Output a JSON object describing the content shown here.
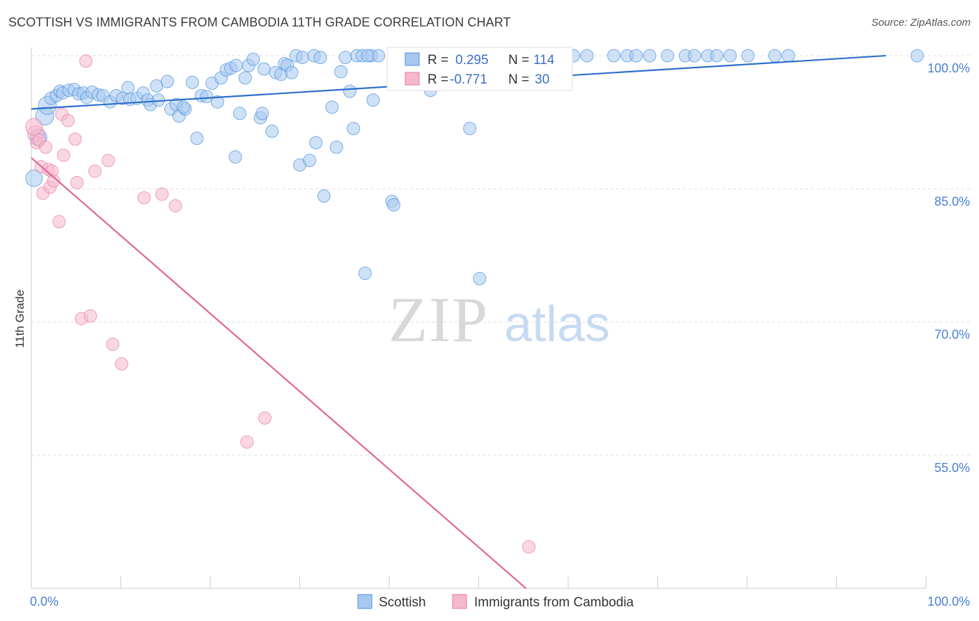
{
  "title": "SCOTTISH VS IMMIGRANTS FROM CAMBODIA 11TH GRADE CORRELATION CHART",
  "source": "Source: ZipAtlas.com",
  "watermark": {
    "zip": "ZIP",
    "atlas": "atlas"
  },
  "colors": {
    "blue": "#4a90d9",
    "blue_fill": "#a8c8f0",
    "pink": "#e87aa0",
    "pink_fill": "#f5b8cc",
    "blue_line": "#2d6fcc",
    "pink_line": "#e0659a",
    "grid": "#dddddd",
    "axis_label": "#4a7fd0"
  },
  "chart_data": {
    "type": "scatter",
    "ylabel": "11th Grade",
    "xlim": [
      0,
      100
    ],
    "ylim": [
      40,
      102
    ],
    "x_tick_labels": [
      {
        "value": 0,
        "label": "0.0%"
      },
      {
        "value": 100,
        "label": "100.0%"
      }
    ],
    "y_ticks": [
      {
        "value": 100,
        "label": "100.0%"
      },
      {
        "value": 85,
        "label": "85.0%"
      },
      {
        "value": 70,
        "label": "70.0%"
      },
      {
        "value": 55,
        "label": "55.0%"
      }
    ],
    "legend": [
      {
        "series": "Scottish",
        "r_label": "R =",
        "r_value": "0.295",
        "n_label": "N =",
        "n_value": "114"
      },
      {
        "series": "Immigrants from Cambodia",
        "r_label": "R =",
        "r_value": "-0.771",
        "n_label": "N =",
        "n_value": "30"
      }
    ],
    "series": [
      {
        "name": "Scottish",
        "trend": {
          "x0": 0,
          "y0": 94.0,
          "x1": 95.5,
          "y1": 100.0
        },
        "points": [
          [
            0.3,
            86.2
          ],
          [
            0.8,
            90.8
          ],
          [
            1.5,
            93.2
          ],
          [
            1.8,
            94.4
          ],
          [
            2.2,
            95.2
          ],
          [
            2.8,
            95.5
          ],
          [
            3.2,
            96.0
          ],
          [
            3.5,
            95.8
          ],
          [
            4.2,
            96.1
          ],
          [
            4.8,
            96.2
          ],
          [
            5.3,
            95.7
          ],
          [
            5.8,
            95.8
          ],
          [
            6.2,
            95.3
          ],
          [
            6.8,
            95.9
          ],
          [
            7.5,
            95.6
          ],
          [
            8.0,
            95.5
          ],
          [
            8.8,
            94.8
          ],
          [
            9.5,
            95.5
          ],
          [
            10.2,
            95.2
          ],
          [
            11.0,
            95.1
          ],
          [
            10.8,
            96.4
          ],
          [
            11.8,
            95.2
          ],
          [
            12.5,
            95.8
          ],
          [
            13.0,
            95.0
          ],
          [
            13.3,
            94.5
          ],
          [
            14.2,
            95.0
          ],
          [
            14.0,
            96.6
          ],
          [
            15.2,
            97.1
          ],
          [
            15.6,
            94.0
          ],
          [
            16.2,
            94.5
          ],
          [
            16.5,
            93.2
          ],
          [
            17.2,
            94.0
          ],
          [
            17.0,
            94.2
          ],
          [
            18.0,
            97.0
          ],
          [
            18.5,
            90.7
          ],
          [
            19.0,
            95.5
          ],
          [
            19.6,
            95.4
          ],
          [
            20.2,
            96.9
          ],
          [
            20.8,
            94.8
          ],
          [
            21.2,
            97.5
          ],
          [
            21.8,
            98.4
          ],
          [
            22.3,
            98.6
          ],
          [
            22.9,
            98.9
          ],
          [
            22.8,
            88.6
          ],
          [
            23.3,
            93.5
          ],
          [
            23.9,
            97.5
          ],
          [
            24.3,
            98.9
          ],
          [
            24.8,
            99.6
          ],
          [
            25.6,
            93.0
          ],
          [
            25.8,
            93.5
          ],
          [
            26.0,
            98.5
          ],
          [
            26.9,
            91.5
          ],
          [
            27.3,
            98.1
          ],
          [
            27.9,
            97.9
          ],
          [
            28.3,
            99.1
          ],
          [
            28.6,
            98.9
          ],
          [
            29.1,
            98.1
          ],
          [
            29.6,
            100.0
          ],
          [
            30.0,
            87.7
          ],
          [
            30.3,
            99.8
          ],
          [
            31.1,
            88.2
          ],
          [
            31.6,
            100.0
          ],
          [
            31.8,
            90.2
          ],
          [
            32.3,
            99.8
          ],
          [
            32.7,
            84.2
          ],
          [
            33.6,
            94.2
          ],
          [
            34.1,
            89.7
          ],
          [
            34.6,
            98.2
          ],
          [
            35.1,
            99.8
          ],
          [
            35.6,
            96.0
          ],
          [
            36.0,
            91.8
          ],
          [
            36.4,
            100.0
          ],
          [
            37.0,
            100.0
          ],
          [
            37.3,
            75.5
          ],
          [
            38.0,
            100.0
          ],
          [
            38.2,
            95.0
          ],
          [
            38.8,
            100.0
          ],
          [
            40.3,
            83.6
          ],
          [
            40.5,
            83.2
          ],
          [
            40.9,
            100.0
          ],
          [
            41.7,
            100.0
          ],
          [
            43.1,
            100.0
          ],
          [
            44.6,
            96.1
          ],
          [
            45.9,
            100.0
          ],
          [
            47.1,
            100.0
          ],
          [
            48.1,
            100.0
          ],
          [
            49.0,
            91.8
          ],
          [
            49.4,
            100.0
          ],
          [
            50.1,
            74.9
          ],
          [
            51.0,
            100.0
          ],
          [
            52.2,
            100.0
          ],
          [
            53.1,
            100.0
          ],
          [
            54.6,
            100.0
          ],
          [
            56.1,
            100.0
          ],
          [
            57.6,
            100.0
          ],
          [
            58.6,
            100.0
          ],
          [
            59.6,
            100.0
          ],
          [
            60.6,
            100.0
          ],
          [
            62.1,
            100.0
          ],
          [
            65.1,
            100.0
          ],
          [
            66.6,
            100.0
          ],
          [
            67.6,
            100.0
          ],
          [
            69.1,
            100.0
          ],
          [
            71.1,
            100.0
          ],
          [
            73.1,
            100.0
          ],
          [
            74.1,
            100.0
          ],
          [
            75.6,
            100.0
          ],
          [
            76.6,
            100.0
          ],
          [
            78.1,
            100.0
          ],
          [
            80.1,
            100.0
          ],
          [
            83.1,
            100.0
          ],
          [
            84.6,
            100.0
          ],
          [
            99.0,
            100.0
          ],
          [
            37.6,
            100.0
          ]
        ]
      },
      {
        "name": "Immigrants from Cambodia",
        "trend": {
          "x0": 0,
          "y0": 88.5,
          "x1": 55.3,
          "y1": 40.0
        },
        "points": [
          [
            0.5,
            91.2
          ],
          [
            0.6,
            90.2
          ],
          [
            0.9,
            90.5
          ],
          [
            1.1,
            87.5
          ],
          [
            1.3,
            84.5
          ],
          [
            1.6,
            89.7
          ],
          [
            1.9,
            87.2
          ],
          [
            2.1,
            85.2
          ],
          [
            2.3,
            87.0
          ],
          [
            2.5,
            85.9
          ],
          [
            3.1,
            81.3
          ],
          [
            3.4,
            93.4
          ],
          [
            3.6,
            88.8
          ],
          [
            4.1,
            92.7
          ],
          [
            4.9,
            90.6
          ],
          [
            5.1,
            85.7
          ],
          [
            5.6,
            70.4
          ],
          [
            6.1,
            99.4
          ],
          [
            6.6,
            70.7
          ],
          [
            7.1,
            87.0
          ],
          [
            8.6,
            88.2
          ],
          [
            9.1,
            67.5
          ],
          [
            10.1,
            65.3
          ],
          [
            12.6,
            84.0
          ],
          [
            14.6,
            84.4
          ],
          [
            16.1,
            83.1
          ],
          [
            24.1,
            56.5
          ],
          [
            26.1,
            59.2
          ],
          [
            55.6,
            44.7
          ],
          [
            0.3,
            92.0
          ]
        ]
      }
    ]
  }
}
